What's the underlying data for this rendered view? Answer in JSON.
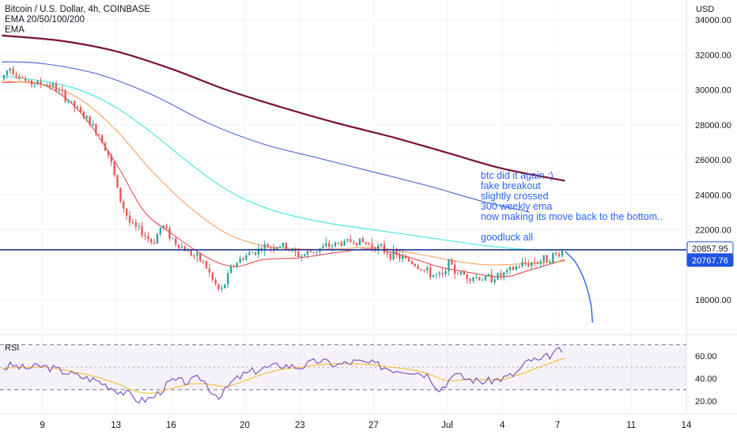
{
  "legend": {
    "symbol": "Bitcoin / U.S. Dollar, 4h, COINBASE",
    "indicator": "EMA 20/50/100/200",
    "indicator2": "EMA"
  },
  "currency": "USD",
  "rsi_label": "RSI",
  "annotation": {
    "lines": [
      "btc did it again :)",
      "fake breakout",
      "slightly crossed",
      "300 weekly ema",
      "now making its move back to the bottom..",
      "",
      "goodluck all"
    ]
  },
  "colors": {
    "ema20": "#f23645",
    "ema50": "#ff9850",
    "ema100": "#4de8e0",
    "ema200": "#5b6fd6",
    "ema300": "#7a1039",
    "candle_up": "#26a69a",
    "candle_down": "#ef5350",
    "level_line": "#1e3a9a",
    "rsi": "#7e57c2",
    "rsi_ma": "#f5c242",
    "projection": "#2962ff",
    "price_tag": "#1e53e5"
  },
  "chart_data": [
    {
      "type": "candlestick",
      "ylim": [
        16000,
        35000
      ],
      "yticks": [
        "34000.00",
        "32000.00",
        "30000.00",
        "28000.00",
        "26000.00",
        "24000.00",
        "22000.00",
        "18000.00"
      ],
      "ytick_values": [
        34000,
        32000,
        30000,
        28000,
        26000,
        24000,
        22000,
        18000
      ],
      "x_labels": [
        "9",
        "13",
        "16",
        "20",
        "23",
        "27",
        "Jul",
        "4",
        "7",
        "11",
        "14"
      ],
      "x_label_days": [
        9,
        13,
        16,
        20,
        23,
        27,
        31,
        34,
        37,
        41,
        44
      ],
      "xlim_days": [
        6.7,
        44
      ],
      "horizontal_level": 20857.95,
      "price_tags": [
        {
          "label": "20857.95",
          "value": 20857.95,
          "style": "outline"
        },
        {
          "label": "20767.76",
          "value": 20767.76,
          "style": "filled"
        }
      ],
      "price_keypoints": [
        {
          "day": 6.8,
          "price": 30600
        },
        {
          "day": 7.2,
          "price": 31300
        },
        {
          "day": 8.2,
          "price": 30400
        },
        {
          "day": 9.5,
          "price": 30300
        },
        {
          "day": 10.5,
          "price": 29300
        },
        {
          "day": 11.5,
          "price": 28200
        },
        {
          "day": 12.2,
          "price": 27300
        },
        {
          "day": 12.7,
          "price": 26000
        },
        {
          "day": 13.2,
          "price": 23800
        },
        {
          "day": 13.8,
          "price": 22300
        },
        {
          "day": 14.5,
          "price": 21800
        },
        {
          "day": 15.0,
          "price": 21200
        },
        {
          "day": 15.5,
          "price": 22300
        },
        {
          "day": 16.2,
          "price": 21300
        },
        {
          "day": 17.0,
          "price": 20700
        },
        {
          "day": 17.8,
          "price": 20100
        },
        {
          "day": 18.3,
          "price": 19000
        },
        {
          "day": 18.7,
          "price": 18400
        },
        {
          "day": 19.3,
          "price": 19900
        },
        {
          "day": 20.0,
          "price": 20500
        },
        {
          "day": 21.0,
          "price": 21000
        },
        {
          "day": 22.0,
          "price": 21100
        },
        {
          "day": 23.0,
          "price": 20500
        },
        {
          "day": 24.0,
          "price": 20900
        },
        {
          "day": 25.0,
          "price": 21200
        },
        {
          "day": 26.0,
          "price": 21400
        },
        {
          "day": 27.0,
          "price": 21100
        },
        {
          "day": 28.0,
          "price": 20600
        },
        {
          "day": 29.0,
          "price": 20200
        },
        {
          "day": 30.0,
          "price": 19500
        },
        {
          "day": 30.7,
          "price": 19300
        },
        {
          "day": 31.2,
          "price": 19700
        },
        {
          "day": 32.0,
          "price": 19400
        },
        {
          "day": 33.0,
          "price": 19200
        },
        {
          "day": 34.0,
          "price": 19400
        },
        {
          "day": 35.0,
          "price": 20000
        },
        {
          "day": 36.0,
          "price": 20200
        },
        {
          "day": 37.0,
          "price": 20600
        },
        {
          "day": 37.4,
          "price": 20900
        }
      ],
      "ema_series": [
        {
          "id": "ema20",
          "points": [
            [
              6.8,
              30400
            ],
            [
              9,
              30300
            ],
            [
              11,
              28800
            ],
            [
              13,
              25800
            ],
            [
              14.5,
              23100
            ],
            [
              16,
              21800
            ],
            [
              18,
              20400
            ],
            [
              19.5,
              19900
            ],
            [
              21,
              20300
            ],
            [
              23,
              20400
            ],
            [
              25,
              20700
            ],
            [
              27,
              20900
            ],
            [
              29,
              20400
            ],
            [
              30.5,
              19900
            ],
            [
              32,
              19600
            ],
            [
              34,
              19300
            ],
            [
              35.5,
              19700
            ],
            [
              37.4,
              20300
            ]
          ]
        },
        {
          "id": "ema50",
          "points": [
            [
              6.8,
              30500
            ],
            [
              9,
              30300
            ],
            [
              11,
              29500
            ],
            [
              13,
              27700
            ],
            [
              15,
              25300
            ],
            [
              17,
              23300
            ],
            [
              19,
              21800
            ],
            [
              21,
              21100
            ],
            [
              23,
              20900
            ],
            [
              25,
              20900
            ],
            [
              27,
              21000
            ],
            [
              29,
              20700
            ],
            [
              31,
              20300
            ],
            [
              33,
              20000
            ],
            [
              35,
              20050
            ],
            [
              37.4,
              20200
            ]
          ]
        },
        {
          "id": "ema100",
          "points": [
            [
              6.8,
              30800
            ],
            [
              9,
              30500
            ],
            [
              11,
              30000
            ],
            [
              13,
              29000
            ],
            [
              15,
              27500
            ],
            [
              17,
              25800
            ],
            [
              19,
              24300
            ],
            [
              21,
              23300
            ],
            [
              23,
              22700
            ],
            [
              25,
              22300
            ],
            [
              27,
              22000
            ],
            [
              29,
              21700
            ],
            [
              31,
              21400
            ],
            [
              33,
              21100
            ],
            [
              35,
              20900
            ],
            [
              36.2,
              20850
            ]
          ]
        },
        {
          "id": "ema200",
          "points": [
            [
              6.8,
              31600
            ],
            [
              9,
              31500
            ],
            [
              12,
              30900
            ],
            [
              15,
              29700
            ],
            [
              18,
              28100
            ],
            [
              21,
              26900
            ],
            [
              24,
              26100
            ],
            [
              27,
              25300
            ],
            [
              30,
              24500
            ],
            [
              33,
              23600
            ],
            [
              35.5,
              23000
            ]
          ]
        },
        {
          "id": "ema300",
          "points": [
            [
              6.8,
              33100
            ],
            [
              10,
              32800
            ],
            [
              13,
              32200
            ],
            [
              16,
              31200
            ],
            [
              19,
              30000
            ],
            [
              22,
              29000
            ],
            [
              25,
              28100
            ],
            [
              28,
              27300
            ],
            [
              31,
              26400
            ],
            [
              34,
              25500
            ],
            [
              37.4,
              24800
            ]
          ]
        }
      ],
      "projection_curve": [
        [
          37.4,
          20767
        ],
        [
          38.0,
          20100
        ],
        [
          38.5,
          19000
        ],
        [
          38.8,
          17800
        ],
        [
          38.9,
          16700
        ]
      ],
      "visible_price_range": {
        "min": 17700,
        "max": 31400
      }
    },
    {
      "type": "line",
      "name": "RSI",
      "ylim": [
        10,
        72
      ],
      "yticks": [
        "60.00",
        "40.00",
        "20.00"
      ],
      "ytick_values": [
        60,
        40,
        20
      ],
      "band": [
        30,
        70
      ],
      "midline": 50,
      "rsi_keypoints": [
        [
          6.8,
          48
        ],
        [
          7.3,
          52
        ],
        [
          8,
          49
        ],
        [
          9,
          51
        ],
        [
          10,
          47
        ],
        [
          11,
          42
        ],
        [
          12,
          38
        ],
        [
          13,
          30
        ],
        [
          13.7,
          26
        ],
        [
          14.3,
          20
        ],
        [
          15,
          23
        ],
        [
          15.5,
          30
        ],
        [
          16,
          38
        ],
        [
          17,
          37
        ],
        [
          17.6,
          41
        ],
        [
          18.3,
          27
        ],
        [
          18.7,
          24
        ],
        [
          19.3,
          37
        ],
        [
          20,
          44
        ],
        [
          21,
          49
        ],
        [
          22,
          52
        ],
        [
          23,
          50
        ],
        [
          24,
          56
        ],
        [
          25,
          52
        ],
        [
          26,
          55
        ],
        [
          27,
          53
        ],
        [
          28,
          48
        ],
        [
          29,
          47
        ],
        [
          30,
          43
        ],
        [
          30.5,
          31
        ],
        [
          31,
          34
        ],
        [
          31.2,
          45
        ],
        [
          32,
          40
        ],
        [
          33,
          37
        ],
        [
          34,
          40
        ],
        [
          34.7,
          44
        ],
        [
          35.5,
          57
        ],
        [
          36,
          55
        ],
        [
          36.5,
          60
        ],
        [
          37,
          64
        ],
        [
          37.4,
          66
        ]
      ],
      "rsi_ma_keypoints": [
        [
          6.8,
          49
        ],
        [
          8,
          50
        ],
        [
          9,
          50
        ],
        [
          10,
          48
        ],
        [
          11,
          45
        ],
        [
          12,
          41
        ],
        [
          13,
          36
        ],
        [
          14,
          29
        ],
        [
          15,
          27
        ],
        [
          16,
          31
        ],
        [
          17,
          35
        ],
        [
          18,
          35
        ],
        [
          19,
          33
        ],
        [
          20,
          38
        ],
        [
          21,
          44
        ],
        [
          22,
          48
        ],
        [
          23,
          50
        ],
        [
          24,
          52
        ],
        [
          25,
          53
        ],
        [
          26,
          53
        ],
        [
          27,
          52
        ],
        [
          28,
          50
        ],
        [
          29,
          48
        ],
        [
          30,
          44
        ],
        [
          31,
          38
        ],
        [
          32,
          39
        ],
        [
          33,
          39
        ],
        [
          34,
          39
        ],
        [
          35,
          44
        ],
        [
          36,
          50
        ],
        [
          37,
          56
        ],
        [
          37.4,
          58
        ]
      ]
    }
  ]
}
